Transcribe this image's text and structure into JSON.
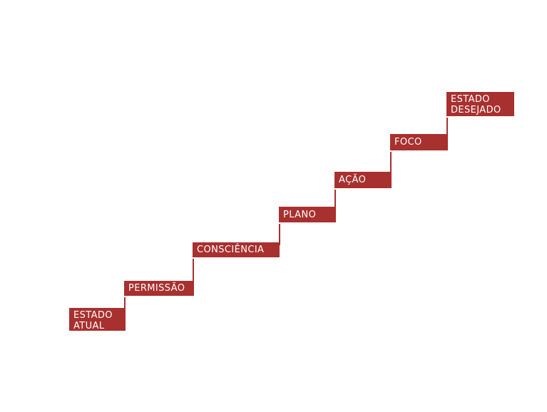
{
  "theme": {
    "step_color": "#a8302f",
    "connector_color": "#a8302f",
    "text_color": "#ffffff"
  },
  "steps": [
    {
      "label": "ESTADO\nATUAL"
    },
    {
      "label": "PERMISSÃO"
    },
    {
      "label": "CONSCIÊNCIA"
    },
    {
      "label": "PLANO"
    },
    {
      "label": "AÇÃO"
    },
    {
      "label": "FOCO"
    },
    {
      "label": "ESTADO\nDESEJADO"
    }
  ]
}
